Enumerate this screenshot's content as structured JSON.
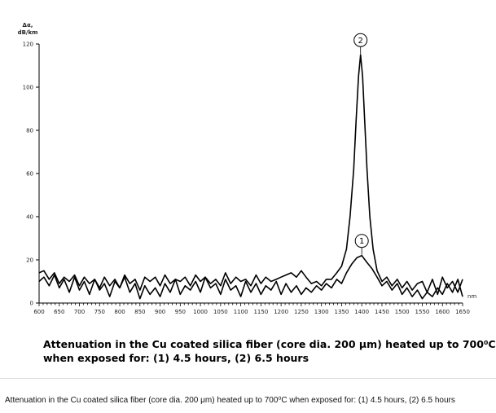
{
  "chart_data": {
    "type": "line",
    "title": "",
    "ylabel_lines": [
      "Δα,",
      "dB/km"
    ],
    "xlabel": "nm",
    "x_ticks": [
      600,
      650,
      700,
      750,
      800,
      850,
      900,
      950,
      1000,
      1050,
      1100,
      1150,
      1200,
      1250,
      1300,
      1350,
      1400,
      1450,
      1500,
      1550,
      1600,
      1650
    ],
    "y_ticks": [
      0,
      20,
      40,
      60,
      80,
      100,
      120
    ],
    "xlim": [
      600,
      1650
    ],
    "ylim": [
      0,
      120
    ],
    "grid": false,
    "series": [
      {
        "name": "1",
        "x": [
          600,
          612,
          625,
          638,
          650,
          662,
          675,
          688,
          700,
          712,
          725,
          738,
          750,
          762,
          775,
          788,
          800,
          812,
          825,
          838,
          850,
          862,
          875,
          888,
          900,
          912,
          925,
          938,
          950,
          962,
          975,
          988,
          1000,
          1012,
          1025,
          1038,
          1050,
          1062,
          1075,
          1088,
          1100,
          1112,
          1125,
          1138,
          1150,
          1162,
          1175,
          1188,
          1200,
          1212,
          1225,
          1238,
          1250,
          1262,
          1275,
          1288,
          1300,
          1312,
          1325,
          1338,
          1350,
          1362,
          1375,
          1388,
          1400,
          1412,
          1425,
          1438,
          1450,
          1462,
          1475,
          1488,
          1500,
          1512,
          1525,
          1538,
          1550,
          1562,
          1575,
          1588,
          1600,
          1612,
          1625,
          1638,
          1650
        ],
        "y": [
          10,
          12,
          8,
          13,
          7,
          11,
          5,
          12,
          6,
          10,
          4,
          11,
          6,
          9,
          3,
          10,
          7,
          12,
          5,
          9,
          2,
          8,
          4,
          7,
          3,
          9,
          5,
          11,
          4,
          8,
          6,
          10,
          5,
          12,
          7,
          9,
          4,
          11,
          6,
          8,
          3,
          10,
          5,
          9,
          4,
          8,
          6,
          10,
          4,
          9,
          5,
          8,
          4,
          7,
          5,
          8,
          6,
          9,
          7,
          11,
          9,
          14,
          18,
          21,
          22,
          19,
          16,
          12,
          8,
          10,
          6,
          9,
          4,
          7,
          3,
          6,
          2,
          5,
          3,
          7,
          4,
          9,
          5,
          11,
          3
        ]
      },
      {
        "name": "2",
        "x": [
          600,
          612,
          625,
          638,
          650,
          662,
          675,
          688,
          700,
          712,
          725,
          738,
          750,
          762,
          775,
          788,
          800,
          812,
          825,
          838,
          850,
          862,
          875,
          888,
          900,
          912,
          925,
          938,
          950,
          962,
          975,
          988,
          1000,
          1012,
          1025,
          1038,
          1050,
          1062,
          1075,
          1088,
          1100,
          1112,
          1125,
          1138,
          1150,
          1162,
          1175,
          1188,
          1200,
          1212,
          1225,
          1238,
          1250,
          1262,
          1275,
          1288,
          1300,
          1312,
          1325,
          1338,
          1350,
          1362,
          1371,
          1380,
          1386,
          1392,
          1397,
          1402,
          1407,
          1413,
          1420,
          1428,
          1438,
          1450,
          1462,
          1475,
          1488,
          1500,
          1512,
          1525,
          1538,
          1550,
          1562,
          1575,
          1588,
          1600,
          1612,
          1625,
          1638,
          1650
        ],
        "y": [
          14,
          15,
          11,
          14,
          9,
          12,
          10,
          13,
          8,
          12,
          9,
          11,
          7,
          12,
          8,
          11,
          7,
          13,
          9,
          11,
          6,
          12,
          10,
          12,
          8,
          13,
          9,
          11,
          10,
          12,
          8,
          13,
          10,
          12,
          9,
          11,
          8,
          14,
          9,
          12,
          10,
          11,
          8,
          13,
          9,
          12,
          10,
          11,
          12,
          13,
          14,
          12,
          15,
          12,
          9,
          10,
          8,
          11,
          11,
          14,
          17,
          25,
          40,
          62,
          85,
          105,
          115,
          105,
          85,
          62,
          40,
          25,
          15,
          10,
          12,
          8,
          11,
          7,
          10,
          6,
          9,
          10,
          5,
          11,
          4,
          12,
          7,
          10,
          5,
          11
        ]
      }
    ],
    "point_labels": [
      "1",
      "2"
    ]
  },
  "caption": {
    "line1": "Attenuation in the Cu coated silica fiber (core dia. 200 μm) heated up to 700⁰C",
    "line2": "when exposed for:  (1) 4.5 hours, (2)  6.5 hours"
  },
  "footer_caption": "Attenuation in the Cu coated silica fiber (core dia. 200 μm) heated up to 700⁰C when exposed for: (1) 4.5 hours, (2) 6.5 hours"
}
